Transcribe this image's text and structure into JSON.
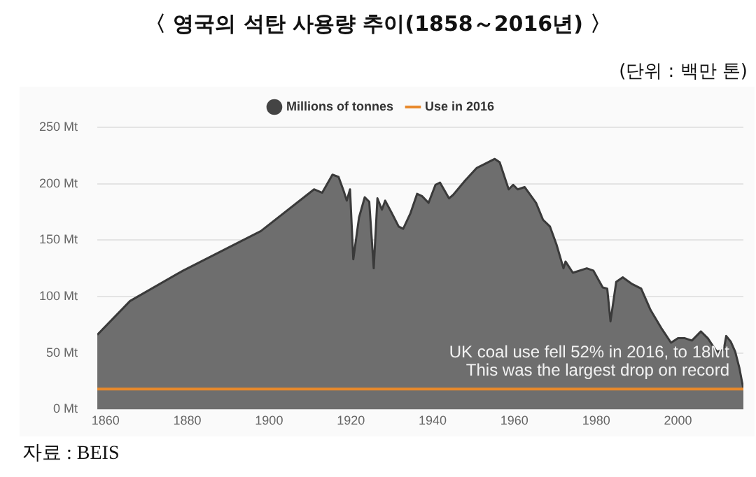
{
  "chart_data": {
    "type": "area",
    "title": "〈 영국의 석탄 사용량 추이(1858～2016년) 〉",
    "subtitle": "(단위 : 백만 톤)",
    "annotations": [
      "UK coal use fell 52% in 2016, to 18Mt",
      "This was the largest drop on record",
      "자료 : BEIS"
    ],
    "xlim": [
      1858,
      2016
    ],
    "xticks": [
      1860,
      1880,
      1900,
      1920,
      1940,
      1960,
      1980,
      2000
    ],
    "ylim": [
      0,
      250
    ],
    "yticks": [
      {
        "value": 0,
        "label": "0 Mt"
      },
      {
        "value": 50,
        "label": "50 Mt"
      },
      {
        "value": 100,
        "label": "100 Mt"
      },
      {
        "value": 150,
        "label": "150 Mt"
      },
      {
        "value": 200,
        "label": "200 Mt"
      },
      {
        "value": 250,
        "label": "250 Mt"
      }
    ],
    "grid": "y",
    "legend": "top",
    "series": [
      {
        "name": "Millions of tonnes",
        "color": "#6e6e6e",
        "x": [
          1858,
          1866,
          1879,
          1898,
          1911,
          1913,
          1915.5,
          1917,
          1918.3,
          1919,
          1919.8,
          1920.6,
          1922,
          1923.4,
          1924.5,
          1925.6,
          1926.5,
          1927.6,
          1928.4,
          1930,
          1931.7,
          1932.8,
          1934.6,
          1936.2,
          1937.4,
          1939,
          1940.7,
          1941.8,
          1944,
          1945,
          1948,
          1950.8,
          1952.5,
          1955.2,
          1956.4,
          1958.6,
          1959.7,
          1960.8,
          1962.5,
          1965.3,
          1967,
          1968.7,
          1970.3,
          1972,
          1972.5,
          1974.3,
          1977.7,
          1979.3,
          1981.6,
          1982.7,
          1983.5,
          1984.9,
          1986.5,
          1988.8,
          1991,
          1993.3,
          1996.1,
          1998.3,
          2000,
          2001.7,
          2003.4,
          2005.6,
          2007.3,
          2009.5,
          2011.2,
          2011.8,
          2012.9,
          2014,
          2015,
          2016
        ],
        "values": [
          66,
          96,
          123,
          158,
          195,
          192,
          208,
          206,
          193,
          185,
          195,
          133,
          170,
          188,
          184,
          125,
          187,
          177,
          185,
          174,
          162,
          160,
          174,
          191,
          189,
          183,
          199,
          201,
          187,
          190,
          203,
          214,
          217,
          222,
          219,
          195,
          199,
          195,
          197,
          183,
          168,
          162,
          146,
          125,
          131,
          121,
          125,
          123,
          108,
          107,
          78,
          113,
          117,
          111,
          107,
          88,
          71,
          59,
          63,
          63,
          61,
          69,
          63,
          51,
          53,
          65,
          60,
          51,
          37,
          18
        ]
      },
      {
        "name": "Use in 2016",
        "type": "line",
        "color": "#e8892b",
        "x": [
          1858,
          2016
        ],
        "values": [
          18,
          18
        ]
      }
    ]
  }
}
